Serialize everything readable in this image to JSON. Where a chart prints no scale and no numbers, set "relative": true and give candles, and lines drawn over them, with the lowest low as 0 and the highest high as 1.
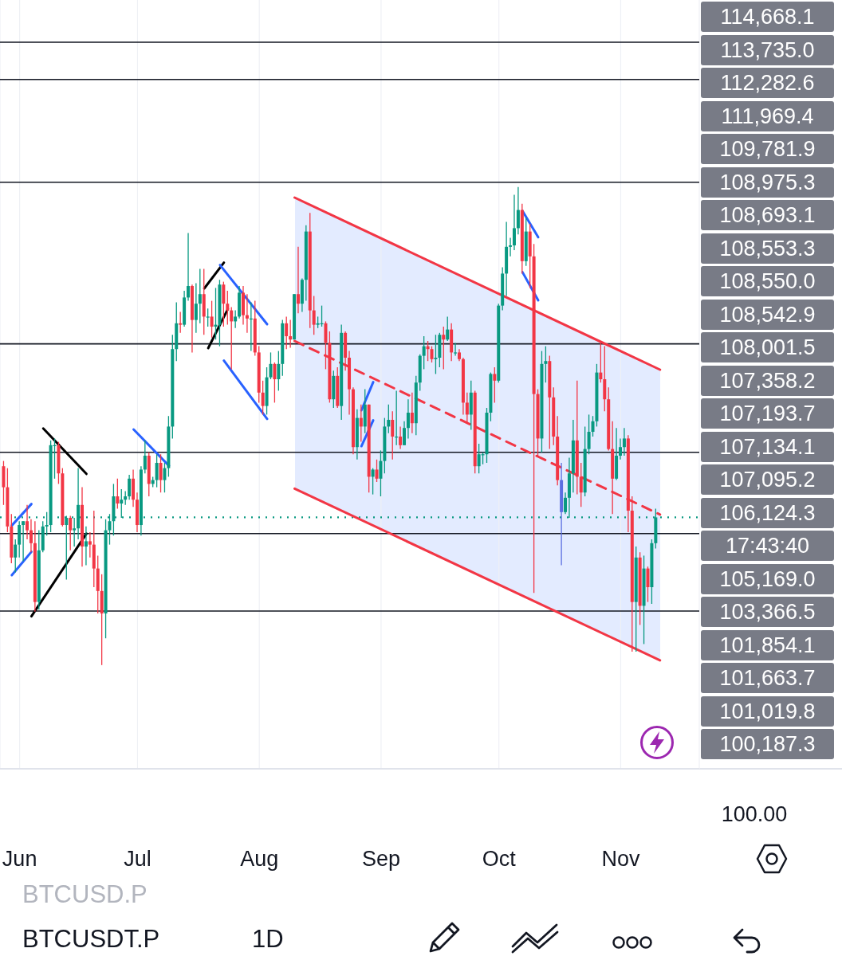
{
  "chart_data": [
    {
      "type": "candlestick",
      "relative": true,
      "x": [
        "--05-28",
        "--05-29",
        "--05-30",
        "--05-31",
        "--06-01",
        "--06-02",
        "--06-03",
        "--06-04",
        "--06-05",
        "--06-06",
        "--06-07",
        "--06-08",
        "--06-09",
        "--06-10",
        "--06-11",
        "--06-12",
        "--06-13",
        "--06-14",
        "--06-15",
        "--06-16",
        "--06-17",
        "--06-18",
        "--06-19",
        "--06-20",
        "--06-21",
        "--06-22",
        "--06-23",
        "--06-24",
        "--06-25",
        "--06-26",
        "--06-27",
        "--06-28",
        "--06-29",
        "--06-30",
        "--07-01",
        "--07-02",
        "--07-03",
        "--07-04",
        "--07-05",
        "--07-06",
        "--07-07",
        "--07-08",
        "--07-09",
        "--07-10",
        "--07-11",
        "--07-12",
        "--07-13",
        "--07-14",
        "--07-15",
        "--07-16",
        "--07-17",
        "--07-18",
        "--07-19",
        "--07-20",
        "--07-21",
        "--07-22",
        "--07-23",
        "--07-24",
        "--07-25",
        "--07-26",
        "--07-27",
        "--07-28",
        "--07-29",
        "--07-30",
        "--07-31",
        "--08-01",
        "--08-02",
        "--08-03",
        "--08-04",
        "--08-05",
        "--08-06",
        "--08-07",
        "--08-08",
        "--08-09",
        "--08-10",
        "--08-11",
        "--08-12",
        "--08-13",
        "--08-14",
        "--08-15",
        "--08-16",
        "--08-17",
        "--08-18",
        "--08-19",
        "--08-20",
        "--08-21",
        "--08-22",
        "--08-23",
        "--08-24",
        "--08-25",
        "--08-26",
        "--08-27",
        "--08-28",
        "--08-29",
        "--08-30",
        "--08-31",
        "--09-01",
        "--09-02",
        "--09-03",
        "--09-04",
        "--09-05",
        "--09-06",
        "--09-07",
        "--09-08",
        "--09-09",
        "--09-10",
        "--09-11",
        "--09-12",
        "--09-13",
        "--09-14",
        "--09-15",
        "--09-16",
        "--09-17",
        "--09-18",
        "--09-19",
        "--09-20",
        "--09-21",
        "--09-22",
        "--09-23",
        "--09-24",
        "--09-25",
        "--09-26",
        "--09-27",
        "--09-28",
        "--09-29",
        "--09-30",
        "--10-01",
        "--10-02",
        "--10-03",
        "--10-04",
        "--10-05",
        "--10-06",
        "--10-07",
        "--10-08",
        "--10-09",
        "--10-10",
        "--10-11",
        "--10-12",
        "--10-13",
        "--10-14",
        "--10-15",
        "--10-16",
        "--10-17",
        "--10-18",
        "--10-19",
        "--10-20",
        "--10-21",
        "--10-22",
        "--10-23",
        "--10-24",
        "--10-25",
        "--10-26",
        "--10-27",
        "--10-28",
        "--10-29",
        "--10-30",
        "--10-31",
        "--11-01",
        "--11-02",
        "--11-03",
        "--11-04",
        "--11-05",
        "--11-06",
        "--11-07",
        "--11-08",
        "--11-09",
        "--11-10"
      ],
      "ohlc": [
        [
          0.416,
          0.427,
          0.335,
          0.372
        ],
        [
          0.372,
          0.412,
          0.278,
          0.29
        ],
        [
          0.29,
          0.316,
          0.213,
          0.225
        ],
        [
          0.225,
          0.263,
          0.194,
          0.252
        ],
        [
          0.252,
          0.301,
          0.225,
          0.293
        ],
        [
          0.293,
          0.301,
          0.217,
          0.301
        ],
        [
          0.301,
          0.335,
          0.263,
          0.282
        ],
        [
          0.282,
          0.305,
          0.236,
          0.255
        ],
        [
          0.255,
          0.301,
          0.112,
          0.132
        ],
        [
          0.132,
          0.282,
          0.116,
          0.24
        ],
        [
          0.24,
          0.301,
          0.236,
          0.29
        ],
        [
          0.29,
          0.32,
          0.271,
          0.293
        ],
        [
          0.293,
          0.47,
          0.278,
          0.46
        ],
        [
          0.46,
          0.474,
          0.39,
          0.46
        ],
        [
          0.46,
          0.467,
          0.379,
          0.401
        ],
        [
          0.401,
          0.412,
          0.29,
          0.293
        ],
        [
          0.293,
          0.312,
          0.179,
          0.308
        ],
        [
          0.308,
          0.312,
          0.24,
          0.282
        ],
        [
          0.282,
          0.308,
          0.248,
          0.286
        ],
        [
          0.286,
          0.412,
          0.263,
          0.335
        ],
        [
          0.335,
          0.372,
          0.206,
          0.248
        ],
        [
          0.248,
          0.29,
          0.209,
          0.259
        ],
        [
          0.259,
          0.278,
          0.225,
          0.252
        ],
        [
          0.252,
          0.323,
          0.163,
          0.202
        ],
        [
          0.202,
          0.229,
          0.108,
          0.155
        ],
        [
          0.155,
          0.19,
          0,
          0.108
        ],
        [
          0.108,
          0.305,
          0.056,
          0.282
        ],
        [
          0.282,
          0.316,
          0.252,
          0.301
        ],
        [
          0.301,
          0.379,
          0.271,
          0.353
        ],
        [
          0.353,
          0.39,
          0.327,
          0.338
        ],
        [
          0.338,
          0.368,
          0.308,
          0.346
        ],
        [
          0.346,
          0.364,
          0.335,
          0.353
        ],
        [
          0.353,
          0.398,
          0.346,
          0.39
        ],
        [
          0.39,
          0.409,
          0.331,
          0.346
        ],
        [
          0.346,
          0.361,
          0.278,
          0.293
        ],
        [
          0.293,
          0.416,
          0.271,
          0.409
        ],
        [
          0.409,
          0.47,
          0.401,
          0.438
        ],
        [
          0.438,
          0.445,
          0.353,
          0.379
        ],
        [
          0.379,
          0.394,
          0.372,
          0.387
        ],
        [
          0.387,
          0.441,
          0.372,
          0.423
        ],
        [
          0.423,
          0.441,
          0.361,
          0.387
        ],
        [
          0.387,
          0.423,
          0.361,
          0.412
        ],
        [
          0.412,
          0.521,
          0.394,
          0.499
        ],
        [
          0.499,
          0.691,
          0.474,
          0.661
        ],
        [
          0.661,
          0.759,
          0.636,
          0.715
        ],
        [
          0.715,
          0.739,
          0.695,
          0.712
        ],
        [
          0.712,
          0.783,
          0.708,
          0.769
        ],
        [
          0.769,
          0.904,
          0.762,
          0.793
        ],
        [
          0.793,
          0.796,
          0.654,
          0.722
        ],
        [
          0.722,
          0.799,
          0.695,
          0.756
        ],
        [
          0.756,
          0.829,
          0.715,
          0.776
        ],
        [
          0.776,
          0.829,
          0.691,
          0.729
        ],
        [
          0.729,
          0.746,
          0.708,
          0.729
        ],
        [
          0.729,
          0.762,
          0.685,
          0.708
        ],
        [
          0.708,
          0.789,
          0.681,
          0.712
        ],
        [
          0.712,
          0.806,
          0.667,
          0.796
        ],
        [
          0.796,
          0.802,
          0.708,
          0.756
        ],
        [
          0.756,
          0.783,
          0.712,
          0.742
        ],
        [
          0.742,
          0.749,
          0.619,
          0.719
        ],
        [
          0.719,
          0.742,
          0.705,
          0.729
        ],
        [
          0.729,
          0.793,
          0.725,
          0.779
        ],
        [
          0.779,
          0.793,
          0.712,
          0.732
        ],
        [
          0.732,
          0.776,
          0.695,
          0.725
        ],
        [
          0.725,
          0.759,
          0.657,
          0.725
        ],
        [
          0.725,
          0.762,
          0.647,
          0.654
        ],
        [
          0.654,
          0.667,
          0.549,
          0.57
        ],
        [
          0.57,
          0.595,
          0.524,
          0.542
        ],
        [
          0.542,
          0.623,
          0.524,
          0.602
        ],
        [
          0.602,
          0.654,
          0.598,
          0.63
        ],
        [
          0.63,
          0.633,
          0.549,
          0.598
        ],
        [
          0.598,
          0.657,
          0.574,
          0.63
        ],
        [
          0.63,
          0.722,
          0.605,
          0.715
        ],
        [
          0.715,
          0.729,
          0.661,
          0.688
        ],
        [
          0.688,
          0.722,
          0.664,
          0.681
        ],
        [
          0.681,
          0.776,
          0.681,
          0.776
        ],
        [
          0.776,
          0.875,
          0.736,
          0.756
        ],
        [
          0.756,
          0.809,
          0.739,
          0.806
        ],
        [
          0.806,
          0.92,
          0.762,
          0.907
        ],
        [
          0.907,
          0.946,
          0.705,
          0.742
        ],
        [
          0.742,
          0.772,
          0.691,
          0.712
        ],
        [
          0.712,
          0.729,
          0.705,
          0.715
        ],
        [
          0.715,
          0.752,
          0.708,
          0.715
        ],
        [
          0.715,
          0.719,
          0.619,
          0.674
        ],
        [
          0.674,
          0.698,
          0.549,
          0.556
        ],
        [
          0.556,
          0.616,
          0.538,
          0.605
        ],
        [
          0.605,
          0.623,
          0.538,
          0.542
        ],
        [
          0.542,
          0.712,
          0.513,
          0.695
        ],
        [
          0.695,
          0.698,
          0.616,
          0.643
        ],
        [
          0.643,
          0.657,
          0.524,
          0.577
        ],
        [
          0.577,
          0.581,
          0.441,
          0.456
        ],
        [
          0.456,
          0.535,
          0.43,
          0.517
        ],
        [
          0.517,
          0.545,
          0.467,
          0.499
        ],
        [
          0.499,
          0.577,
          0.485,
          0.545
        ],
        [
          0.545,
          0.545,
          0.361,
          0.394
        ],
        [
          0.394,
          0.412,
          0.357,
          0.409
        ],
        [
          0.409,
          0.43,
          0.383,
          0.39
        ],
        [
          0.39,
          0.449,
          0.353,
          0.427
        ],
        [
          0.427,
          0.517,
          0.401,
          0.499
        ],
        [
          0.499,
          0.545,
          0.485,
          0.513
        ],
        [
          0.513,
          0.531,
          0.43,
          0.478
        ],
        [
          0.478,
          0.574,
          0.46,
          0.478
        ],
        [
          0.478,
          0.499,
          0.452,
          0.46
        ],
        [
          0.46,
          0.51,
          0.46,
          0.496
        ],
        [
          0.496,
          0.556,
          0.474,
          0.528
        ],
        [
          0.528,
          0.57,
          0.485,
          0.506
        ],
        [
          0.506,
          0.605,
          0.481,
          0.591
        ],
        [
          0.591,
          0.65,
          0.574,
          0.647
        ],
        [
          0.647,
          0.688,
          0.619,
          0.667
        ],
        [
          0.667,
          0.678,
          0.636,
          0.661
        ],
        [
          0.661,
          0.667,
          0.633,
          0.64
        ],
        [
          0.64,
          0.691,
          0.609,
          0.643
        ],
        [
          0.643,
          0.695,
          0.623,
          0.691
        ],
        [
          0.691,
          0.708,
          0.619,
          0.681
        ],
        [
          0.681,
          0.729,
          0.678,
          0.702
        ],
        [
          0.702,
          0.715,
          0.636,
          0.654
        ],
        [
          0.654,
          0.674,
          0.647,
          0.654
        ],
        [
          0.654,
          0.661,
          0.636,
          0.64
        ],
        [
          0.64,
          0.643,
          0.524,
          0.549
        ],
        [
          0.549,
          0.57,
          0.506,
          0.524
        ],
        [
          0.524,
          0.595,
          0.492,
          0.57
        ],
        [
          0.57,
          0.574,
          0.401,
          0.416
        ],
        [
          0.416,
          0.463,
          0.401,
          0.441
        ],
        [
          0.441,
          0.445,
          0.42,
          0.441
        ],
        [
          0.441,
          0.538,
          0.423,
          0.528
        ],
        [
          0.528,
          0.612,
          0.51,
          0.609
        ],
        [
          0.609,
          0.623,
          0.549,
          0.595
        ],
        [
          0.595,
          0.756,
          0.591,
          0.752
        ],
        [
          0.752,
          0.832,
          0.742,
          0.819
        ],
        [
          0.819,
          0.927,
          0.772,
          0.875
        ],
        [
          0.875,
          0.894,
          0.855,
          0.878
        ],
        [
          0.878,
          0.984,
          0.868,
          0.914
        ],
        [
          0.914,
          1,
          0.901,
          0.952
        ],
        [
          0.952,
          0.965,
          0.819,
          0.845
        ],
        [
          0.845,
          0.936,
          0.835,
          0.907
        ],
        [
          0.907,
          0.923,
          0.789,
          0.855
        ],
        [
          0.855,
          0.881,
          0.151,
          0.567
        ],
        [
          0.567,
          0.577,
          0.438,
          0.474
        ],
        [
          0.474,
          0.657,
          0.445,
          0.63
        ],
        [
          0.63,
          0.667,
          0.591,
          0.636
        ],
        [
          0.636,
          0.647,
          0.452,
          0.56
        ],
        [
          0.56,
          0.581,
          0.46,
          0.478
        ],
        [
          0.478,
          0.521,
          0.376,
          0.387
        ],
        [
          0.387,
          0.423,
          0.209,
          0.32
        ],
        [
          0.32,
          0.361,
          0.316,
          0.35
        ],
        [
          0.35,
          0.434,
          0.308,
          0.401
        ],
        [
          0.401,
          0.513,
          0.361,
          0.47
        ],
        [
          0.47,
          0.595,
          0.357,
          0.394
        ],
        [
          0.394,
          0.423,
          0.331,
          0.361
        ],
        [
          0.361,
          0.499,
          0.353,
          0.452
        ],
        [
          0.452,
          0.524,
          0.441,
          0.488
        ],
        [
          0.488,
          0.521,
          0.478,
          0.51
        ],
        [
          0.51,
          0.63,
          0.499,
          0.612
        ],
        [
          0.612,
          0.678,
          0.591,
          0.598
        ],
        [
          0.598,
          0.667,
          0.531,
          0.556
        ],
        [
          0.556,
          0.581,
          0.449,
          0.452
        ],
        [
          0.452,
          0.51,
          0.316,
          0.39
        ],
        [
          0.39,
          0.496,
          0.387,
          0.438
        ],
        [
          0.438,
          0.474,
          0.43,
          0.456
        ],
        [
          0.456,
          0.496,
          0.438,
          0.474
        ],
        [
          0.474,
          0.481,
          0.278,
          0.323
        ],
        [
          0.323,
          0.353,
          0.028,
          0.132
        ],
        [
          0.132,
          0.248,
          0.028,
          0.225
        ],
        [
          0.225,
          0.236,
          0.084,
          0.124
        ],
        [
          0.124,
          0.229,
          0.044,
          0.202
        ],
        [
          0.202,
          0.206,
          0.132,
          0.163
        ],
        [
          0.163,
          0.263,
          0.128,
          0.255
        ],
        [
          0.255,
          0.327,
          0.244,
          0.309
        ]
      ],
      "colors": [
        "#f23645",
        "#f23645",
        "#f23645",
        "#089981",
        "#089981",
        "#089981",
        "#f23645",
        "#f23645",
        "#f23645",
        "#089981",
        "#089981",
        "#089981",
        "#089981",
        "#089981",
        "#f23645",
        "#f23645",
        "#089981",
        "#f23645",
        "#089981",
        "#089981",
        "#f23645",
        "#089981",
        "#f23645",
        "#f23645",
        "#f23645",
        "#f23645",
        "#089981",
        "#089981",
        "#089981",
        "#f23645",
        "#089981",
        "#089981",
        "#089981",
        "#f23645",
        "#f23645",
        "#089981",
        "#089981",
        "#f23645",
        "#089981",
        "#089981",
        "#f23645",
        "#089981",
        "#089981",
        "#089981",
        "#089981",
        "#f23645",
        "#089981",
        "#089981",
        "#f23645",
        "#089981",
        "#089981",
        "#f23645",
        "#089981",
        "#f23645",
        "#089981",
        "#089981",
        "#f23645",
        "#f23645",
        "#f23645",
        "#089981",
        "#089981",
        "#f23645",
        "#f23645",
        "#089981",
        "#f23645",
        "#f23645",
        "#f23645",
        "#089981",
        "#089981",
        "#f23645",
        "#089981",
        "#089981",
        "#f23645",
        "#f23645",
        "#089981",
        "#f23645",
        "#089981",
        "#089981",
        "#f23645",
        "#f23645",
        "#089981",
        "#089981",
        "#f23645",
        "#f23645",
        "#089981",
        "#f23645",
        "#089981",
        "#f23645",
        "#f23645",
        "#f23645",
        "#089981",
        "#f23645",
        "#089981",
        "#f23645",
        "#089981",
        "#f23645",
        "#089981",
        "#089981",
        "#089981",
        "#f23645",
        "#089981",
        "#f23645",
        "#089981",
        "#089981",
        "#f23645",
        "#089981",
        "#089981",
        "#089981",
        "#f23645",
        "#f23645",
        "#089981",
        "#089981",
        "#f23645",
        "#089981",
        "#f23645",
        "#089981",
        "#f23645",
        "#f23645",
        "#f23645",
        "#089981",
        "#f23645",
        "#089981",
        "#089981",
        "#089981",
        "#089981",
        "#f23645",
        "#089981",
        "#089981",
        "#089981",
        "#089981",
        "#089981",
        "#089981",
        "#f23645",
        "#089981",
        "#f23645",
        "#f23645",
        "#f23645",
        "#089981",
        "#089981",
        "#f23645",
        "#f23645",
        "#f23645",
        "#5b6ee1",
        "#089981",
        "#089981",
        "#089981",
        "#f23645",
        "#f23645",
        "#089981",
        "#089981",
        "#089981",
        "#089981",
        "#f23645",
        "#f23645",
        "#f23645",
        "#f23645",
        "#089981",
        "#089981",
        "#089981",
        "#f23645",
        "#f23645",
        "#089981",
        "#f23645",
        "#089981",
        "#f23645",
        "#089981",
        "#089981"
      ],
      "xlim": [
        "--05-27",
        "--11-21"
      ],
      "xticks": [
        {
          "value": "--06-01",
          "label": "Jun"
        },
        {
          "value": "--07-01",
          "label": "Jul"
        },
        {
          "value": "--08-01",
          "label": "Aug"
        },
        {
          "value": "--09-01",
          "label": "Sep"
        },
        {
          "value": "--10-01",
          "label": "Oct"
        },
        {
          "value": "--11-01",
          "label": "Nov"
        }
      ],
      "grid": "x",
      "series": [
        {
          "type": "line",
          "color": "#f23645",
          "x": [
            "--08-10",
            "--11-11"
          ],
          "values": [
            0.978,
            0.618
          ]
        },
        {
          "type": "line",
          "color": "#f23645",
          "line_style": "dashed",
          "x": [
            "--08-10",
            "--11-11"
          ],
          "values": [
            0.678,
            0.315
          ]
        },
        {
          "type": "line",
          "color": "#f23645",
          "x": [
            "--08-10",
            "--11-11"
          ],
          "values": [
            0.369,
            0.01
          ]
        },
        {
          "type": "line",
          "color": "#000000",
          "x": [
            "--06-07",
            "--06-18"
          ],
          "values": [
            0.495,
            0.4
          ]
        },
        {
          "type": "line",
          "color": "#000000",
          "x": [
            "--06-04",
            "--06-18"
          ],
          "values": [
            0.102,
            0.275
          ]
        },
        {
          "type": "line",
          "color": "#000000",
          "x": [
            "--07-18",
            "--07-23"
          ],
          "values": [
            0.788,
            0.842
          ]
        },
        {
          "type": "line",
          "color": "#000000",
          "x": [
            "--07-19",
            "--07-24"
          ],
          "values": [
            0.663,
            0.745
          ]
        },
        {
          "type": "line",
          "color": "#2962ff",
          "x": [
            "--06-30",
            "--07-09"
          ],
          "values": [
            0.493,
            0.417
          ]
        },
        {
          "type": "line",
          "color": "#2962ff",
          "x": [
            "--07-22",
            "--08-03"
          ],
          "values": [
            0.837,
            0.713
          ]
        },
        {
          "type": "line",
          "color": "#2962ff",
          "x": [
            "--07-23",
            "--08-03"
          ],
          "values": [
            0.637,
            0.515
          ]
        },
        {
          "type": "line",
          "color": "#2962ff",
          "x": [
            "--05-30",
            "--06-04"
          ],
          "values": [
            0.292,
            0.337
          ]
        },
        {
          "type": "line",
          "color": "#2962ff",
          "x": [
            "--05-30",
            "--06-04"
          ],
          "values": [
            0.188,
            0.237
          ]
        },
        {
          "type": "line",
          "color": "#2962ff",
          "x": [
            "--08-27",
            "--08-30"
          ],
          "values": [
            0.533,
            0.592
          ]
        },
        {
          "type": "line",
          "color": "#2962ff",
          "x": [
            "--08-27",
            "--08-30"
          ],
          "values": [
            0.458,
            0.512
          ]
        },
        {
          "type": "line",
          "color": "#2962ff",
          "x": [
            "--10-07",
            "--10-11"
          ],
          "values": [
            0.95,
            0.895
          ]
        },
        {
          "type": "line",
          "color": "#2962ff",
          "x": [
            "--10-07",
            "--10-11"
          ],
          "values": [
            0.822,
            0.763
          ]
        }
      ],
      "ref_lines": [
        {
          "axis": "y",
          "value": 1.303,
          "color": "#131722"
        },
        {
          "axis": "y",
          "value": 1.225,
          "color": "#131722"
        },
        {
          "axis": "y",
          "value": 1.01,
          "color": "#131722"
        },
        {
          "axis": "y",
          "value": 0.672,
          "color": "#131722"
        },
        {
          "axis": "y",
          "value": 0.445,
          "color": "#131722"
        },
        {
          "axis": "y",
          "value": 0.275,
          "color": "#131722"
        },
        {
          "axis": "y",
          "value": 0.113,
          "color": "#131722"
        },
        {
          "axis": "y",
          "value": 0.309,
          "color": "#089981",
          "line_style": "dotted"
        }
      ],
      "annotations": [
        "114,668.1",
        "113,735.0",
        "112,282.6",
        "111,969.4",
        "109,781.9",
        "108,975.3",
        "108,693.1",
        "108,553.3",
        "108,550.0",
        "108,542.9",
        "108,001.5",
        "107,358.2",
        "107,193.7",
        "107,134.1",
        "107,095.2",
        "106,124.3",
        "17:43:40",
        "105,169.0",
        "103,366.5",
        "101,854.1",
        "101,663.7",
        "101,019.8",
        "100,187.3"
      ]
    },
    {
      "type": "other",
      "annotations": [
        "100.00"
      ]
    },
    {
      "type": "other",
      "annotations": [
        "BTCUSD.P",
        "BTCUSDT.P",
        "1D"
      ]
    }
  ]
}
